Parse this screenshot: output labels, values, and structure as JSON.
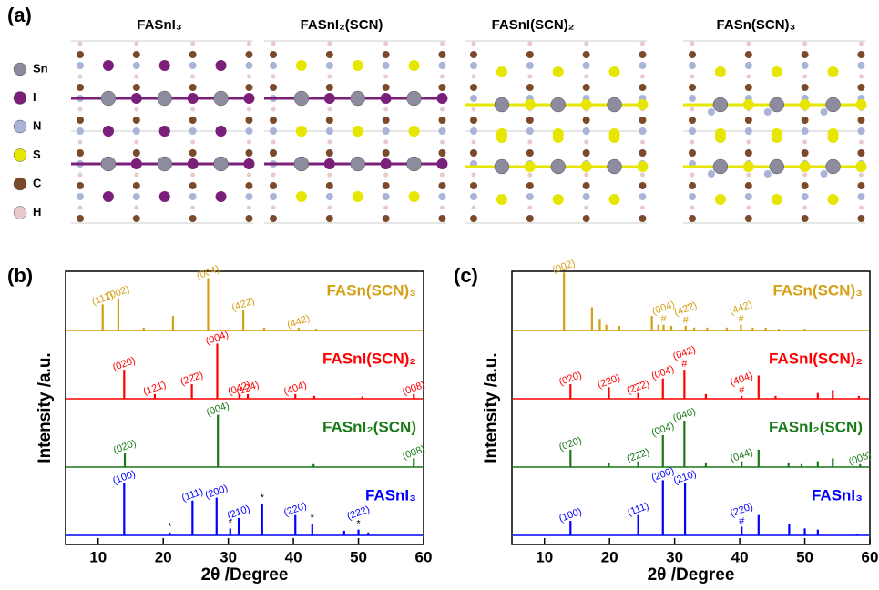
{
  "panel_a": {
    "label": "(a)",
    "titles": [
      "FASnI₃",
      "FASnI₂(SCN)",
      "FASnI(SCN)₂",
      "FASn(SCN)₃"
    ],
    "legend": [
      {
        "name": "Sn",
        "color": "#8c8c9e"
      },
      {
        "name": "I",
        "color": "#7a1f7a"
      },
      {
        "name": "N",
        "color": "#aab4d6"
      },
      {
        "name": "S",
        "color": "#e6e600"
      },
      {
        "name": "C",
        "color": "#7a4a2a"
      },
      {
        "name": "H",
        "color": "#e8caca"
      }
    ]
  },
  "chart_data": [
    {
      "type": "stem",
      "panel_label": "(b)",
      "xlabel": "2θ /Degree",
      "ylabel": "Intensity /a.u.",
      "xlim": [
        5,
        60
      ],
      "xticks": [
        10,
        20,
        30,
        40,
        50,
        60
      ],
      "ylim": [
        0,
        100
      ],
      "series": [
        {
          "name": "FASn(SCN)₃",
          "color": "#d4a017",
          "x": [
            10.7,
            13.1,
            17.0,
            21.5,
            26.9,
            32.3,
            35.5,
            40.8,
            43.5
          ],
          "values": [
            45,
            55,
            5,
            25,
            90,
            35,
            5,
            5,
            3
          ],
          "peak_labels": [
            "(111̄)",
            "(002)",
            null,
            null,
            "(004)",
            "(42̄2̄)",
            null,
            "(442)",
            null
          ],
          "peak_marks": [
            null,
            null,
            null,
            null,
            null,
            null,
            null,
            null,
            null
          ]
        },
        {
          "name": "FASnI(SCN)₂",
          "color": "#ff0000",
          "x": [
            14.0,
            18.7,
            24.4,
            28.3,
            31.7,
            33.0,
            40.3,
            43.2,
            50.6,
            58.5
          ],
          "values": [
            50,
            8,
            25,
            95,
            8,
            8,
            8,
            5,
            4,
            8
          ],
          "peak_labels": [
            "(020)",
            "(121̄)",
            "(22̄2)",
            "(004)",
            "(042)",
            "(124)",
            "(404)",
            null,
            null,
            "(008)"
          ],
          "peak_marks": [
            null,
            null,
            null,
            null,
            null,
            null,
            null,
            null,
            null,
            null
          ]
        },
        {
          "name": "FASnI₂(SCN)",
          "color": "#1a7a1a",
          "x": [
            14.1,
            28.4,
            43.1,
            58.5
          ],
          "values": [
            25,
            90,
            5,
            15
          ],
          "peak_labels": [
            "(020)",
            "(004)",
            null,
            "(008)"
          ],
          "peak_marks": [
            null,
            null,
            null,
            null
          ]
        },
        {
          "name": "FASnI₃",
          "color": "#0000ff",
          "x": [
            14.0,
            21.0,
            24.5,
            28.2,
            30.3,
            31.6,
            35.2,
            40.3,
            42.9,
            47.8,
            50.0,
            51.5
          ],
          "values": [
            90,
            5,
            60,
            65,
            12,
            30,
            55,
            35,
            20,
            8,
            10,
            5
          ],
          "peak_labels": [
            "(100)",
            null,
            "(111)",
            "(200)",
            null,
            "(210)",
            null,
            "(220)",
            null,
            null,
            "(222)",
            null
          ],
          "peak_marks": [
            null,
            "*",
            null,
            null,
            "*",
            null,
            "*",
            null,
            "*",
            null,
            "*",
            null
          ]
        }
      ]
    },
    {
      "type": "stem",
      "panel_label": "(c)",
      "xlabel": "2θ /Degree",
      "ylabel": "Intensity /a.u.",
      "xlim": [
        5,
        60
      ],
      "xticks": [
        10,
        20,
        30,
        40,
        50,
        60
      ],
      "ylim": [
        0,
        100
      ],
      "series": [
        {
          "name": "FASn(SCN)₃",
          "color": "#d4a017",
          "x": [
            13.0,
            17.3,
            18.5,
            19.5,
            21.5,
            26.5,
            27.5,
            28.3,
            29.5,
            31.7,
            33.0,
            35.0,
            38.0,
            40.2,
            42.0,
            44.0,
            46.0,
            50.0
          ],
          "values": [
            100,
            40,
            20,
            10,
            8,
            25,
            10,
            10,
            8,
            8,
            5,
            5,
            5,
            10,
            5,
            5,
            3,
            3
          ],
          "peak_labels": [
            "(002)",
            null,
            null,
            null,
            null,
            null,
            null,
            "(004)",
            null,
            "(42̄2̄)",
            null,
            null,
            null,
            "(442)",
            null,
            null,
            null,
            null
          ],
          "peak_marks": [
            null,
            null,
            null,
            null,
            null,
            null,
            null,
            "#",
            null,
            "#",
            null,
            null,
            null,
            "#",
            null,
            null,
            null,
            null
          ]
        },
        {
          "name": "FASnI(SCN)₂",
          "color": "#ff0000",
          "x": [
            14.0,
            19.9,
            24.4,
            28.2,
            31.5,
            34.8,
            40.3,
            42.9,
            45.5,
            52.0,
            54.3,
            58.3
          ],
          "values": [
            25,
            20,
            10,
            35,
            50,
            8,
            5,
            40,
            5,
            10,
            15,
            5
          ],
          "peak_labels": [
            "(020)",
            "(220)",
            "(2̄2̄2)",
            "(004)",
            "(042)",
            null,
            "(404)",
            null,
            null,
            null,
            null,
            null
          ],
          "peak_marks": [
            null,
            null,
            null,
            null,
            "#",
            null,
            "#",
            null,
            null,
            null,
            null,
            null
          ]
        },
        {
          "name": "FASnI₂(SCN)",
          "color": "#1a7a1a",
          "x": [
            14.0,
            19.9,
            24.4,
            28.2,
            31.5,
            34.8,
            40.3,
            42.9,
            47.5,
            49.5,
            52.0,
            54.3,
            58.5
          ],
          "values": [
            30,
            8,
            10,
            55,
            80,
            8,
            10,
            30,
            8,
            5,
            10,
            15,
            5
          ],
          "peak_labels": [
            "(020)",
            null,
            "(2̄2̄2)",
            "(004)",
            "(040)",
            null,
            "(044)",
            null,
            null,
            null,
            null,
            null,
            "(008)"
          ],
          "peak_marks": [
            null,
            null,
            null,
            null,
            null,
            null,
            null,
            null,
            null,
            null,
            null,
            null,
            null
          ]
        },
        {
          "name": "FASnI₃",
          "color": "#0000ff",
          "x": [
            14.0,
            24.4,
            28.2,
            31.6,
            40.3,
            42.9,
            47.6,
            50.0,
            52.0,
            58.0
          ],
          "values": [
            25,
            35,
            95,
            90,
            15,
            35,
            20,
            12,
            10,
            3
          ],
          "peak_labels": [
            "(100)",
            "(111)",
            "(200)",
            "(210)",
            "(220)",
            null,
            null,
            null,
            null,
            null
          ],
          "peak_marks": [
            null,
            null,
            null,
            null,
            "#",
            null,
            null,
            null,
            null,
            null
          ]
        }
      ]
    }
  ]
}
